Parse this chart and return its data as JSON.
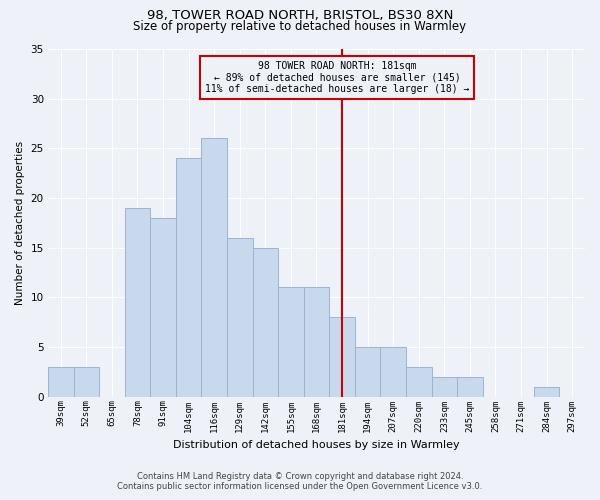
{
  "title_line1": "98, TOWER ROAD NORTH, BRISTOL, BS30 8XN",
  "title_line2": "Size of property relative to detached houses in Warmley",
  "xlabel": "Distribution of detached houses by size in Warmley",
  "ylabel": "Number of detached properties",
  "bar_labels": [
    "39sqm",
    "52sqm",
    "65sqm",
    "78sqm",
    "91sqm",
    "104sqm",
    "116sqm",
    "129sqm",
    "142sqm",
    "155sqm",
    "168sqm",
    "181sqm",
    "194sqm",
    "207sqm",
    "220sqm",
    "233sqm",
    "245sqm",
    "258sqm",
    "271sqm",
    "284sqm",
    "297sqm"
  ],
  "bar_values": [
    3,
    3,
    0,
    19,
    18,
    24,
    26,
    16,
    15,
    11,
    11,
    8,
    5,
    5,
    3,
    2,
    2,
    0,
    0,
    1,
    0
  ],
  "bar_color": "#c8d8ed",
  "bar_edge_color": "#9ab4d2",
  "vline_x_idx": 11,
  "vline_color": "#cc0000",
  "annotation_text": "98 TOWER ROAD NORTH: 181sqm\n← 89% of detached houses are smaller (145)\n11% of semi-detached houses are larger (18) →",
  "annotation_box_color": "#cc0000",
  "ylim": [
    0,
    35
  ],
  "yticks": [
    0,
    5,
    10,
    15,
    20,
    25,
    30,
    35
  ],
  "footer_line1": "Contains HM Land Registry data © Crown copyright and database right 2024.",
  "footer_line2": "Contains public sector information licensed under the Open Government Licence v3.0.",
  "bg_color": "#eef2f8",
  "grid_color": "#ffffff"
}
